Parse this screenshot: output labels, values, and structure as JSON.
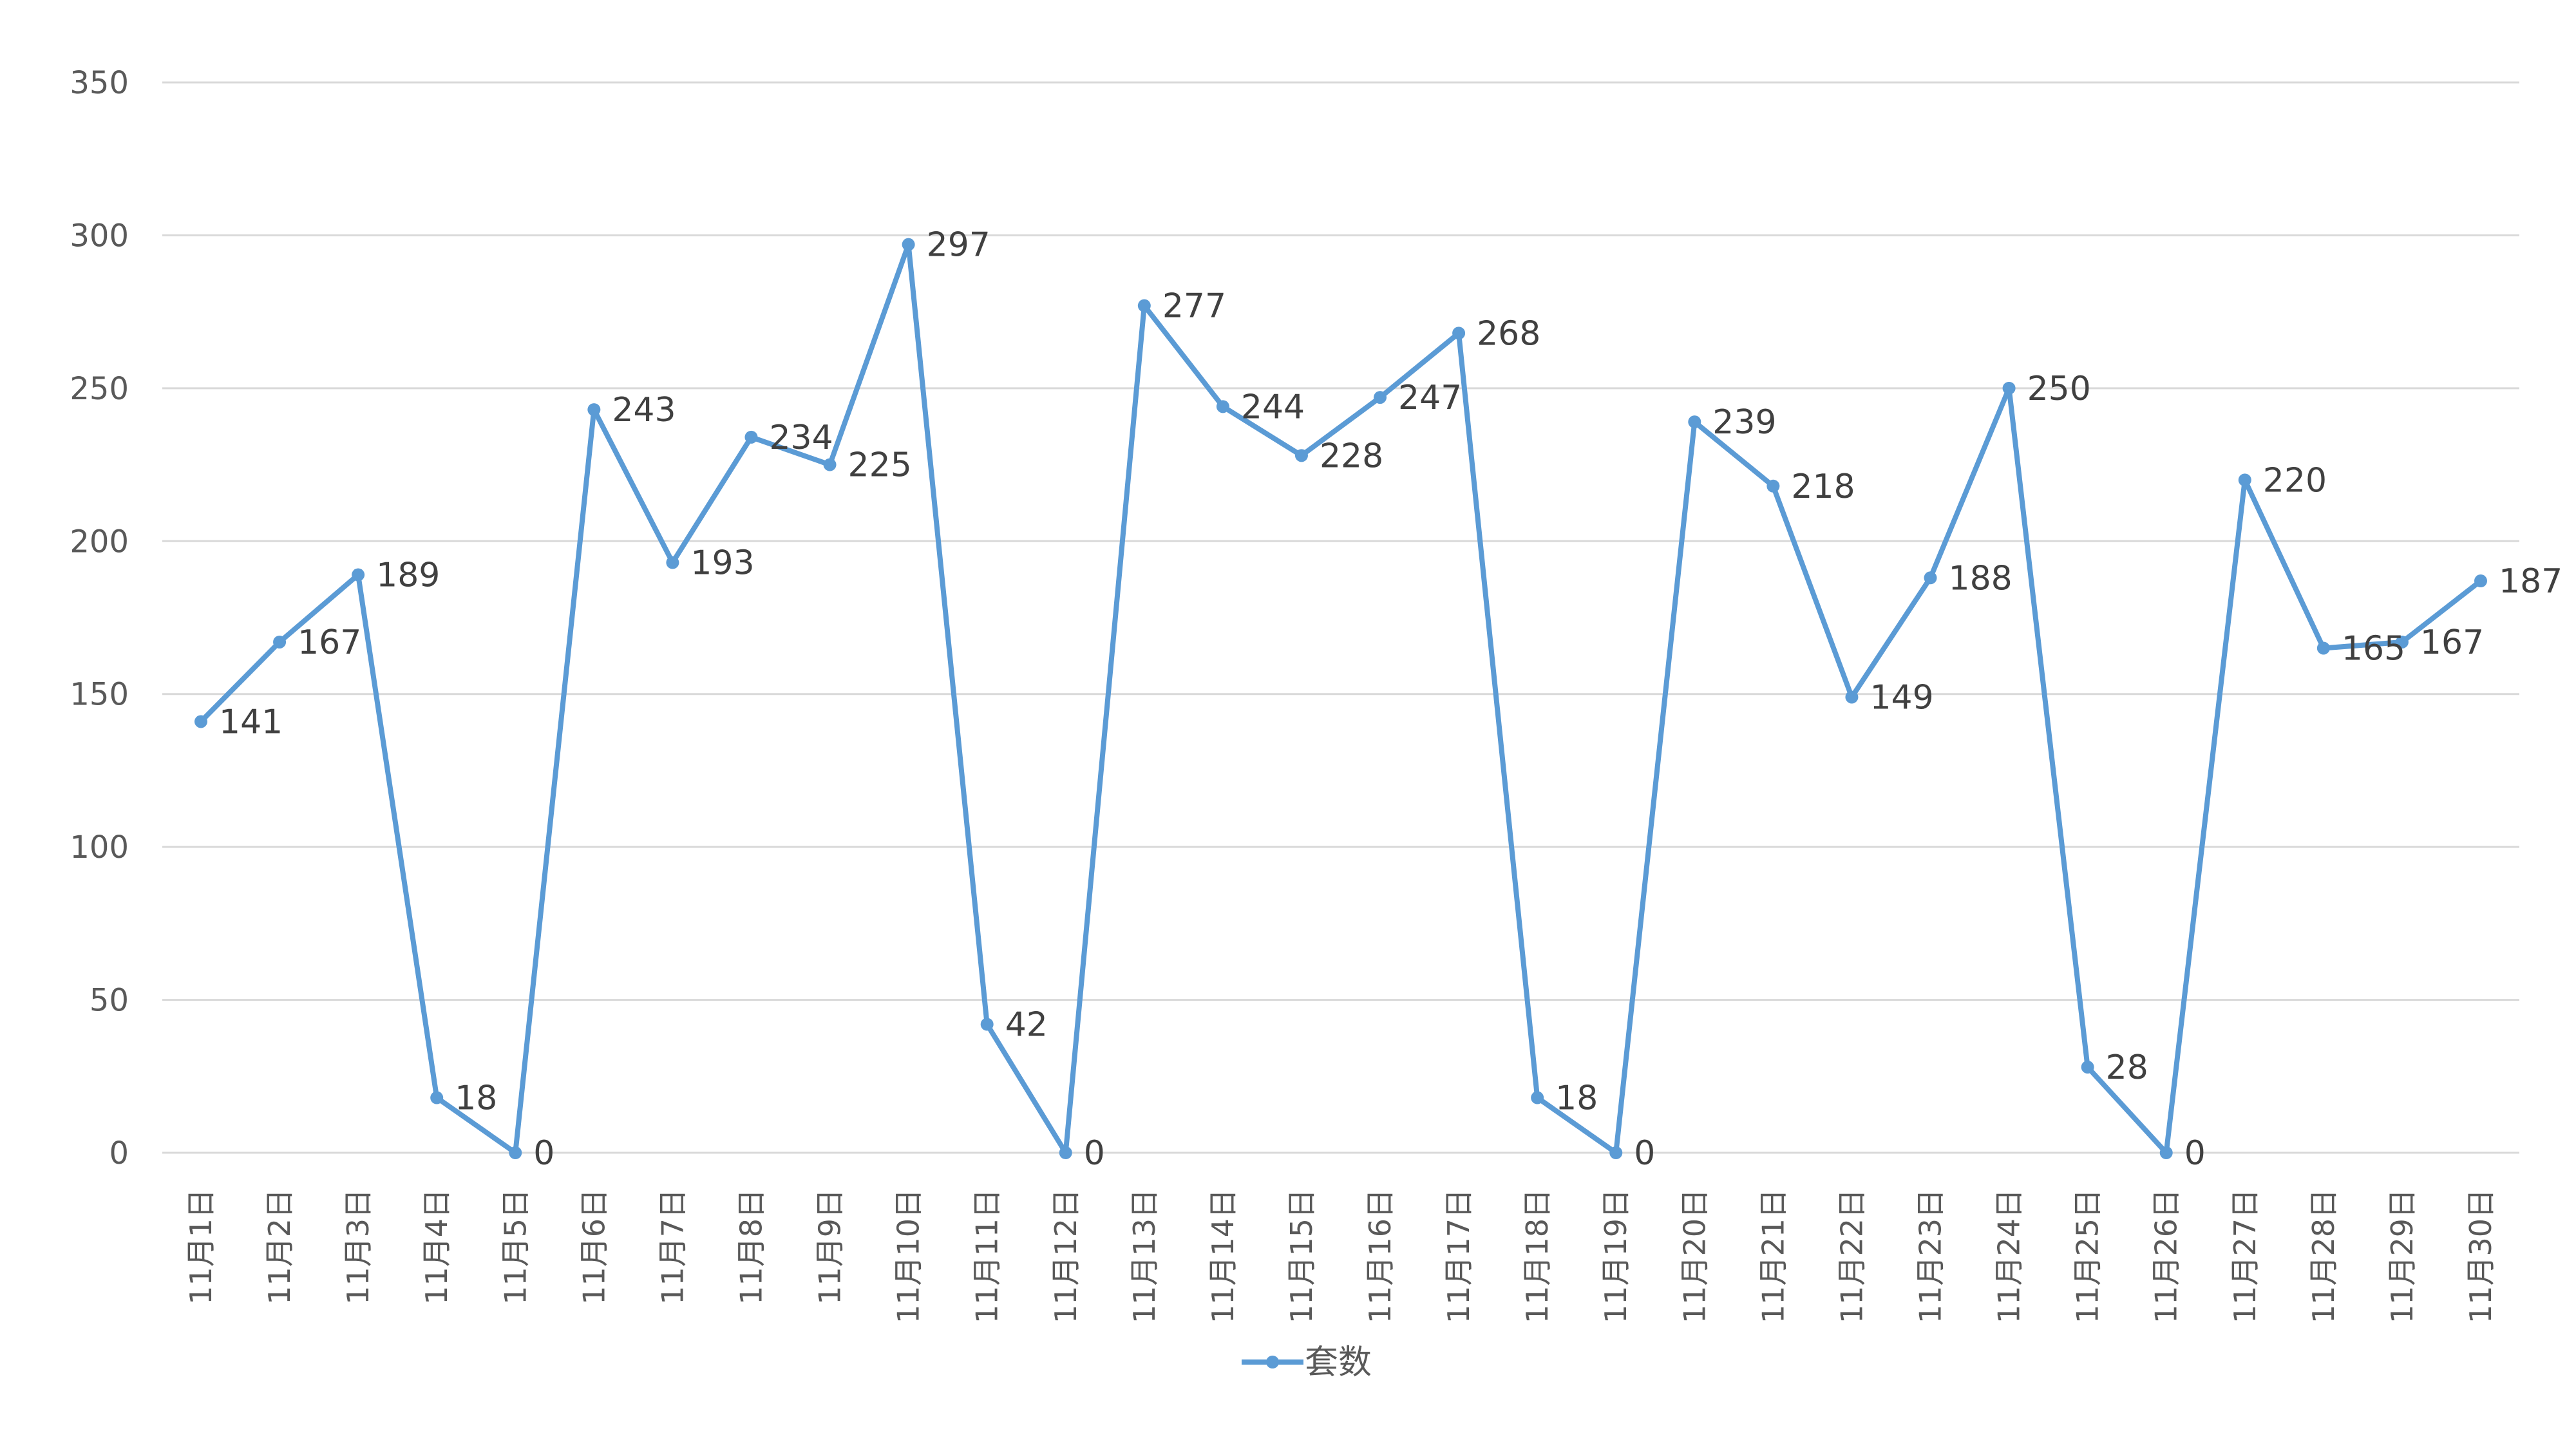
{
  "chart_data": {
    "type": "line",
    "x": [
      "11月1日",
      "11月2日",
      "11月3日",
      "11月4日",
      "11月5日",
      "11月6日",
      "11月7日",
      "11月8日",
      "11月9日",
      "11月10日",
      "11月11日",
      "11月12日",
      "11月13日",
      "11月14日",
      "11月15日",
      "11月16日",
      "11月17日",
      "11月18日",
      "11月19日",
      "11月20日",
      "11月21日",
      "11月22日",
      "11月23日",
      "11月24日",
      "11月25日",
      "11月26日",
      "11月27日",
      "11月28日",
      "11月29日",
      "11月30日"
    ],
    "series": [
      {
        "name": "套数",
        "color": "#5b9bd5",
        "values": [
          141,
          167,
          189,
          18,
          0,
          243,
          193,
          234,
          225,
          297,
          42,
          0,
          277,
          244,
          228,
          247,
          268,
          18,
          0,
          239,
          218,
          149,
          188,
          250,
          28,
          0,
          220,
          165,
          167,
          187
        ]
      }
    ],
    "y_ticks": [
      "0",
      "50",
      "100",
      "150",
      "200",
      "250",
      "300",
      "350"
    ],
    "ylim": [
      0,
      350
    ],
    "grid": true,
    "legend": "bottom-center",
    "data_labels": true
  }
}
